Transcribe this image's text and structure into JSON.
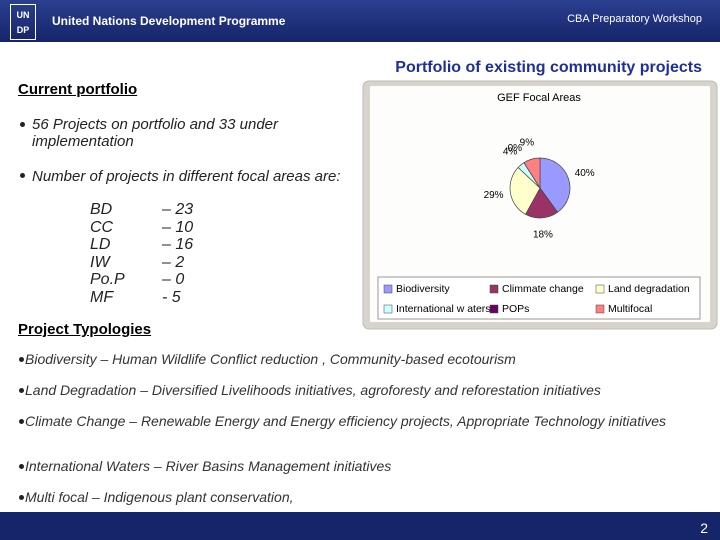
{
  "header": {
    "logo": {
      "top": "UN",
      "bottom": "DP"
    },
    "organization": "United Nations Development Programme",
    "event": "CBA Preparatory Workshop"
  },
  "title": "Portfolio of existing community projects",
  "current_portfolio": {
    "heading": "Current portfolio",
    "bullets": [
      "56 Projects on portfolio and 33 under implementation",
      "Number of projects in different focal areas are:"
    ],
    "focal_areas": [
      [
        "BD",
        "– 23"
      ],
      [
        "CC",
        "– 10"
      ],
      [
        "LD",
        "– 16"
      ],
      [
        "IW",
        "– 2"
      ],
      [
        "Po.P",
        "– 0"
      ],
      [
        "MF",
        "- 5"
      ]
    ]
  },
  "typologies": {
    "heading": "Project Typologies",
    "bullets": [
      "Biodiversity – Human Wildlife Conflict reduction , Community-based ecotourism",
      "Land Degradation – Diversified Livelihoods initiatives, agroforesty and reforestation initiatives",
      "Climate Change – Renewable Energy and Energy efficiency projects, Appropriate Technology initiatives",
      "International Waters – River Basins Management initiatives",
      "Multi focal – Indigenous plant conservation,"
    ]
  },
  "footer": {
    "page": "2"
  },
  "chart_data": {
    "type": "pie",
    "title": "GEF Focal Areas",
    "categories": [
      "Biodiversity",
      "Climmate change",
      "Land degradation",
      "International w aters",
      "POPs",
      "Multifocal"
    ],
    "values": [
      40,
      18,
      29,
      4,
      0,
      9
    ],
    "value_labels": [
      "40%",
      "18%",
      "29%",
      "4%",
      "0%",
      "9%"
    ],
    "colors": [
      "#9999ff",
      "#993366",
      "#ffffcc",
      "#ccffff",
      "#660066",
      "#ff8080"
    ]
  }
}
